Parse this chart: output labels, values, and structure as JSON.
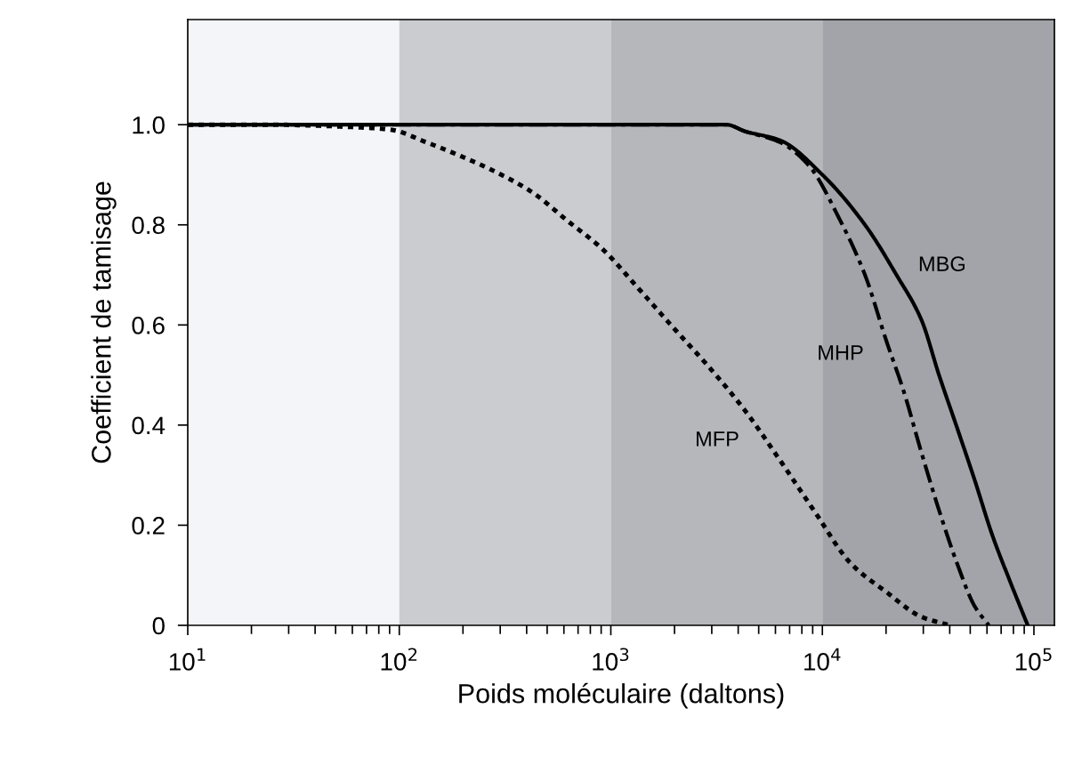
{
  "chart_data": {
    "type": "line",
    "xlabel": "Poids moléculaire (daltons)",
    "ylabel": "Coefficient de tamisage",
    "log": "x",
    "xlim": [
      10,
      125000
    ],
    "ylim": [
      0,
      1.21
    ],
    "xticks": [
      {
        "value": 10,
        "label": "10$^{1}$"
      },
      {
        "value": 100,
        "label": "10$^{2}$"
      },
      {
        "value": 1000,
        "label": "10$^{3}$"
      },
      {
        "value": 10000,
        "label": "10$^{4}$"
      },
      {
        "value": 100000,
        "label": "10$^{5}$"
      }
    ],
    "yticks": [
      {
        "value": 0,
        "label": "0"
      },
      0.2,
      0.4,
      0.6,
      0.8,
      {
        "value": 1.0,
        "label": "1.0"
      }
    ],
    "grid": false,
    "legend": false,
    "marker": "none",
    "bands": [
      {
        "axis": "x",
        "from": 10,
        "to": 100,
        "color": "#f3f5f9"
      },
      {
        "axis": "x",
        "from": 100,
        "to": 1000,
        "color": "#cbccd0"
      },
      {
        "axis": "x",
        "from": 1000,
        "to": 10000,
        "color": "#b6b7bb"
      },
      {
        "axis": "x",
        "from": 10000,
        "to": 125000,
        "color": "#a3a4a9"
      }
    ],
    "series": [
      {
        "name": "MBG",
        "color": "#000000",
        "line_style": "solid",
        "x": [
          10,
          425,
          3530,
          4290,
          6300,
          10000,
          15900,
          22400,
          29400,
          35600,
          43300,
          52500,
          63600,
          77100,
          93500
        ],
        "values": [
          1.0,
          1.0,
          1.0,
          0.987,
          0.969,
          0.9,
          0.8,
          0.7,
          0.61,
          0.5,
          0.395,
          0.29,
          0.18,
          0.088,
          0.0
        ]
      },
      {
        "name": "MHP",
        "color": "#000000",
        "line_style": "dashdot",
        "x": [
          10,
          425,
          3530,
          4290,
          6300,
          8570,
          12100,
          15900,
          20000,
          24300,
          29400,
          35600,
          43300,
          52500,
          61200
        ],
        "values": [
          1.0,
          1.0,
          1.0,
          0.987,
          0.965,
          0.92,
          0.81,
          0.7,
          0.57,
          0.466,
          0.345,
          0.23,
          0.124,
          0.038,
          0.0
        ]
      },
      {
        "name": "MFP",
        "color": "#000000",
        "line_style": "dotted",
        "x": [
          10,
          24,
          62,
          91,
          134,
          196,
          288,
          425,
          624,
          916,
          1350,
          1980,
          2910,
          4290,
          6300,
          9270,
          13600,
          20000,
          29400,
          40100
        ],
        "values": [
          1.0,
          1.0,
          0.995,
          0.99,
          0.965,
          0.937,
          0.905,
          0.865,
          0.808,
          0.751,
          0.673,
          0.594,
          0.516,
          0.43,
          0.33,
          0.225,
          0.124,
          0.067,
          0.017,
          0.0
        ]
      }
    ]
  }
}
